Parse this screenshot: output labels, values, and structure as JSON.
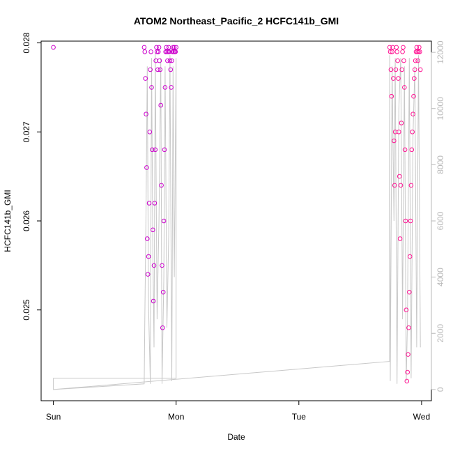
{
  "chart_data": {
    "type": "scatter",
    "title": "ATOM2 Northeast_Pacific_2 HCFC141b_GMI",
    "xlabel": "Date",
    "ylabel": "HCFC141b_GMI",
    "x_ticks": [
      "Sun",
      "Mon",
      "Tue",
      "Wed"
    ],
    "x_tick_pos": [
      0,
      1,
      2,
      3
    ],
    "xlim": [
      -0.1,
      3.08
    ],
    "ylim": [
      0.02398,
      0.02802
    ],
    "y_ticks": [
      0.025,
      0.026,
      0.027,
      0.028
    ],
    "y_tick_labels": [
      "0.025",
      "0.026",
      "0.027",
      "0.028"
    ],
    "right_axis": {
      "ylim": [
        -400,
        12400
      ],
      "ticks": [
        0,
        2000,
        4000,
        6000,
        8000,
        10000,
        12000
      ],
      "tick_labels": [
        "0",
        "2000",
        "4000",
        "6000",
        "8000",
        "10000",
        "12000"
      ],
      "color": "#b9b9b9"
    },
    "grid": false,
    "legend": "none",
    "point_color_early": "#cc00cc",
    "point_color_late": "#ff1493",
    "line_color": "#c8c8c8",
    "series": [
      {
        "kind": "points",
        "x": [
          0.0,
          0.74,
          0.745,
          0.75,
          0.755,
          0.76,
          0.765,
          0.77,
          0.775,
          0.78,
          0.785,
          0.79,
          0.795,
          0.8,
          0.805,
          0.81,
          0.815,
          0.82,
          0.825,
          0.83,
          0.835,
          0.84,
          0.845,
          0.85,
          0.855,
          0.86,
          0.865,
          0.87,
          0.875,
          0.88,
          0.885,
          0.89,
          0.895,
          0.9,
          0.905,
          0.91,
          0.915,
          0.92,
          0.925,
          0.93,
          0.935,
          0.94,
          0.945,
          0.95,
          0.955,
          0.96,
          0.965,
          0.97,
          0.975,
          0.98,
          0.985,
          0.99,
          0.995,
          1.0
        ],
        "y": [
          0.02795,
          0.02795,
          0.0279,
          0.0276,
          0.0272,
          0.0266,
          0.0258,
          0.0254,
          0.0256,
          0.0262,
          0.027,
          0.0277,
          0.0279,
          0.0275,
          0.0268,
          0.0259,
          0.0251,
          0.0255,
          0.0262,
          0.0268,
          0.0278,
          0.02795,
          0.0279,
          0.0277,
          0.0279,
          0.02795,
          0.0278,
          0.0277,
          0.0273,
          0.0264,
          0.0255,
          0.0248,
          0.0252,
          0.026,
          0.0268,
          0.0275,
          0.0279,
          0.02795,
          0.0279,
          0.0278,
          0.0279,
          0.02795,
          0.0279,
          0.0278,
          0.0277,
          0.0275,
          0.0278,
          0.0279,
          0.02795,
          0.0279,
          0.02795,
          0.0279,
          0.0279,
          0.02795
        ]
      },
      {
        "kind": "points",
        "x": [
          2.74,
          2.745,
          2.75,
          2.755,
          2.76,
          2.765,
          2.77,
          2.775,
          2.78,
          2.785,
          2.79,
          2.795,
          2.8,
          2.805,
          2.81,
          2.815,
          2.82,
          2.825,
          2.83,
          2.835,
          2.84,
          2.845,
          2.85,
          2.855,
          2.86,
          2.865,
          2.87,
          2.875,
          2.88,
          2.885,
          2.89,
          2.895,
          2.9,
          2.905,
          2.91,
          2.915,
          2.92,
          2.925,
          2.93,
          2.935,
          2.94,
          2.945,
          2.95,
          2.955,
          2.96,
          2.965,
          2.97,
          2.975,
          2.98,
          2.985,
          2.99
        ],
        "y": [
          0.02795,
          0.0279,
          0.0277,
          0.0274,
          0.0279,
          0.02795,
          0.0276,
          0.0269,
          0.0264,
          0.027,
          0.0277,
          0.02795,
          0.0279,
          0.0278,
          0.0276,
          0.027,
          0.0265,
          0.0258,
          0.0264,
          0.0271,
          0.0277,
          0.0279,
          0.02795,
          0.0278,
          0.0275,
          0.0268,
          0.026,
          0.025,
          0.0242,
          0.0243,
          0.0245,
          0.0248,
          0.0252,
          0.0256,
          0.026,
          0.0264,
          0.0268,
          0.027,
          0.0272,
          0.0274,
          0.0276,
          0.0277,
          0.0278,
          0.0279,
          0.02795,
          0.0279,
          0.0278,
          0.0279,
          0.02795,
          0.0279,
          0.0277
        ]
      },
      {
        "kind": "line",
        "axis": "right",
        "x": [
          0.0,
          0.0,
          0.74,
          0.745,
          0.755,
          0.765,
          0.775,
          0.79,
          0.8,
          0.81,
          0.82,
          0.83,
          0.845,
          0.86,
          0.875,
          0.885,
          0.9,
          0.91,
          0.925,
          0.94,
          0.95,
          0.965,
          0.975,
          0.985,
          1.0,
          1.0,
          0.0,
          0.0,
          2.74,
          2.74,
          2.745,
          2.76,
          2.775,
          2.785,
          2.8,
          2.815,
          2.83,
          2.845,
          2.86,
          2.875,
          2.885,
          2.9,
          2.915,
          2.93,
          2.945,
          2.96,
          2.975,
          2.99
        ],
        "y": [
          400,
          0,
          200,
          2500,
          6500,
          11500,
          3000,
          200,
          11800,
          5000,
          1500,
          12000,
          2500,
          6000,
          11800,
          200,
          4000,
          11500,
          2200,
          5500,
          11900,
          300,
          11500,
          4000,
          11800,
          400,
          400,
          0,
          1000,
          11900,
          300,
          11500,
          6000,
          11800,
          200,
          10000,
          11800,
          2500,
          11500,
          300,
          2500,
          11800,
          400,
          9000,
          11500,
          1500,
          11900,
          1500
        ]
      }
    ]
  }
}
